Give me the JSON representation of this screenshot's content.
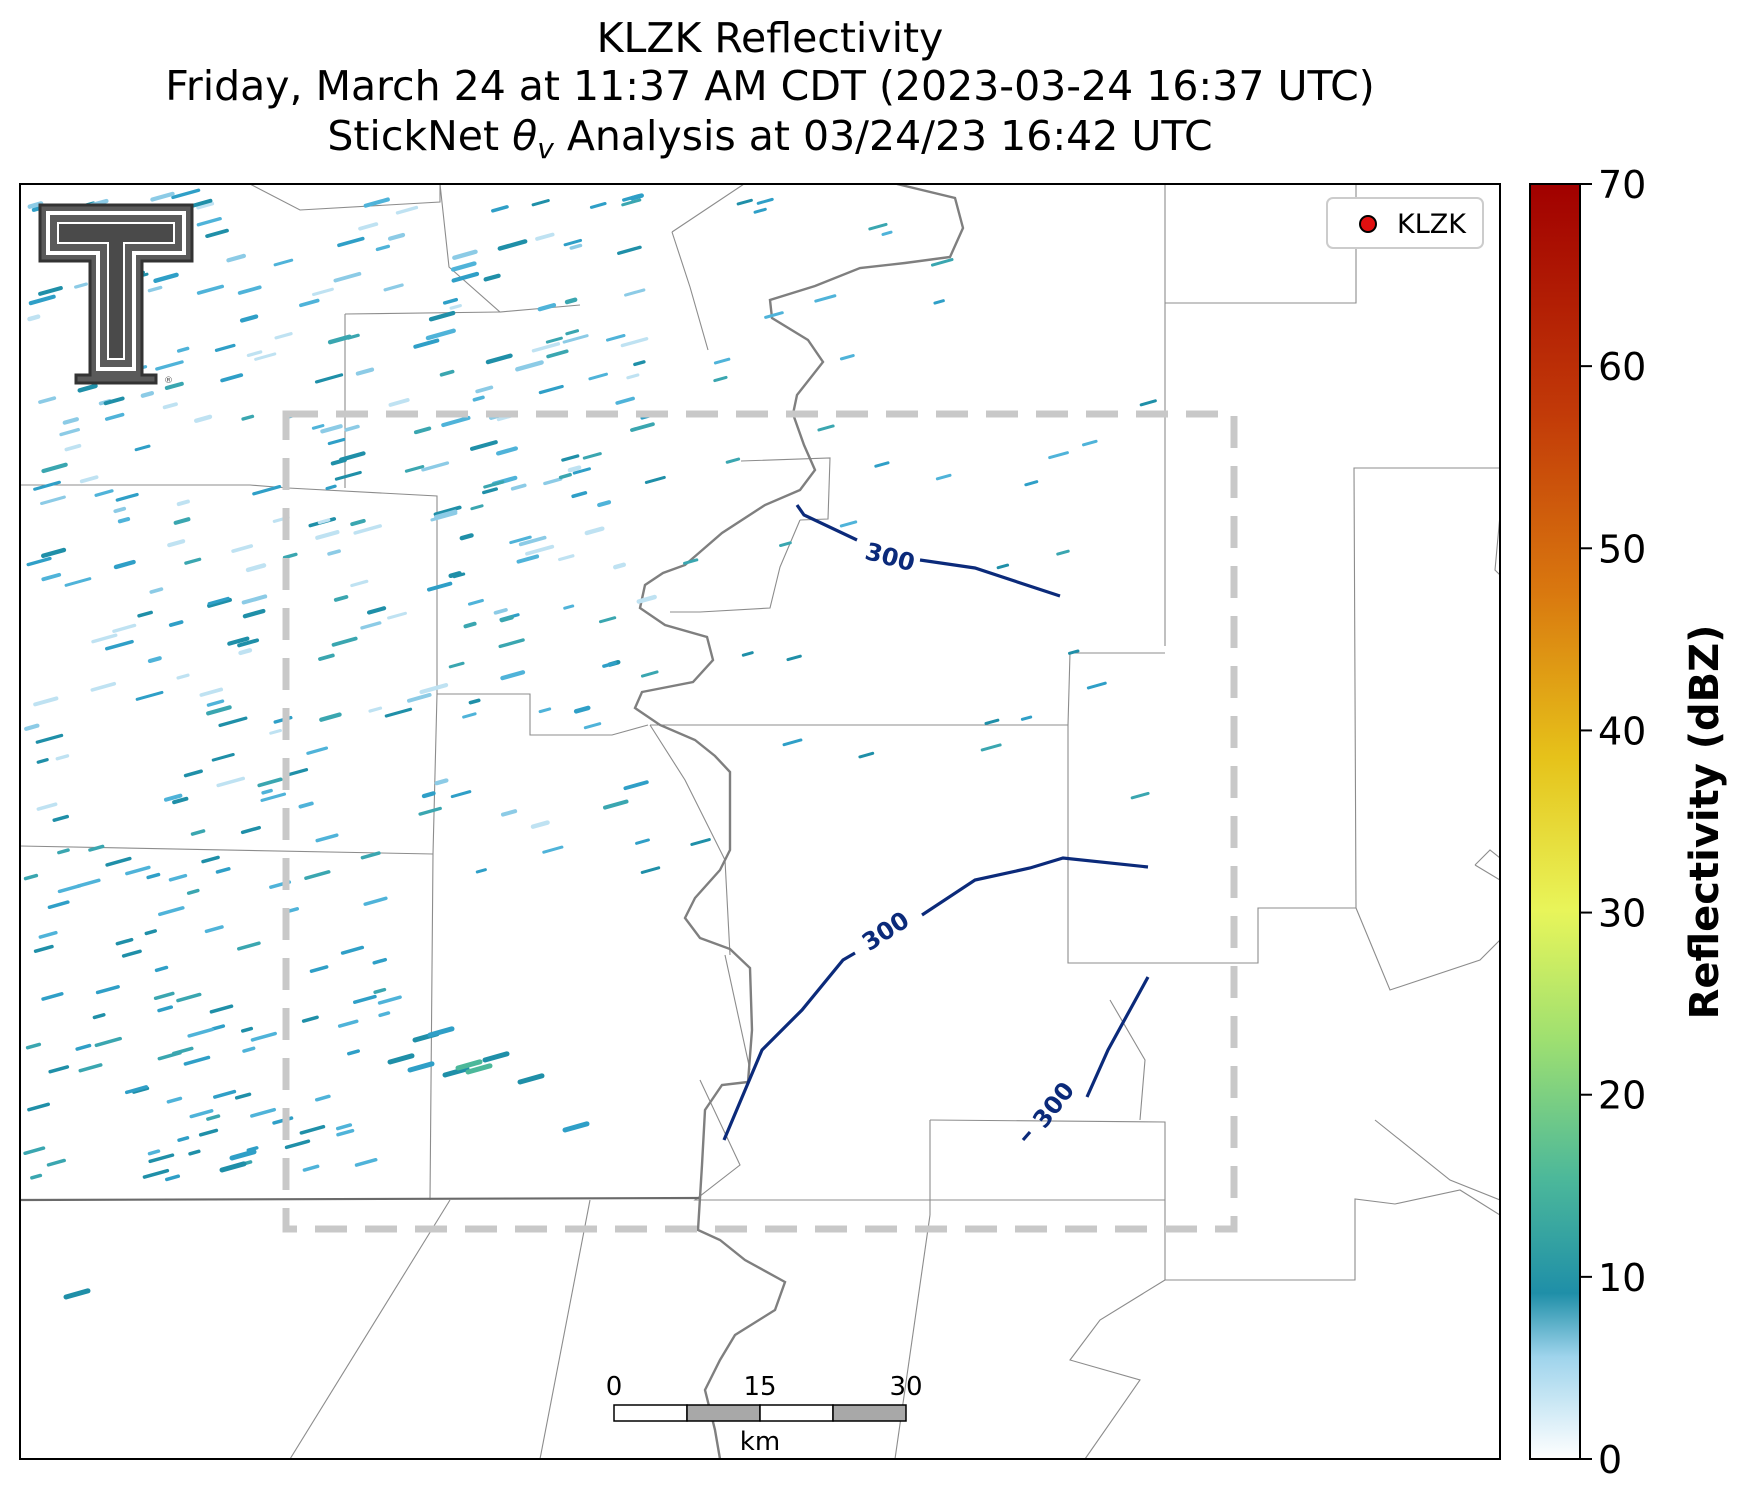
{
  "title": {
    "line1": "KLZK Reflectivity",
    "line2": "Friday, March 24 at 11:37 AM CDT (2023-03-24 16:37 UTC)",
    "line3_prefix": "StickNet ",
    "line3_theta": "θ",
    "line3_sub": "v",
    "line3_suffix": " Analysis at 03/24/23 16:42 UTC"
  },
  "legend": {
    "station": "KLZK",
    "marker_color": "#e01010"
  },
  "colorbar": {
    "label": "Reflectivity (dBZ)",
    "ticks": [
      "0",
      "10",
      "20",
      "30",
      "40",
      "50",
      "60",
      "70"
    ],
    "colors": [
      "#ffffff",
      "#4fb3d9",
      "#1f8fa8",
      "#4cb89a",
      "#9fe070",
      "#e8f55a",
      "#e6c21a",
      "#d9780f",
      "#c23a08",
      "#a10000"
    ]
  },
  "contours": {
    "label": "300",
    "color": "#0b2a7a"
  },
  "scalebar": {
    "ticks": [
      "0",
      "15",
      "30"
    ],
    "unit": "km"
  },
  "colors": {
    "county": "#8c8c8c",
    "river": "#7f7f7f",
    "box": "#c8c8c8",
    "echo": "#2f9fc7"
  }
}
